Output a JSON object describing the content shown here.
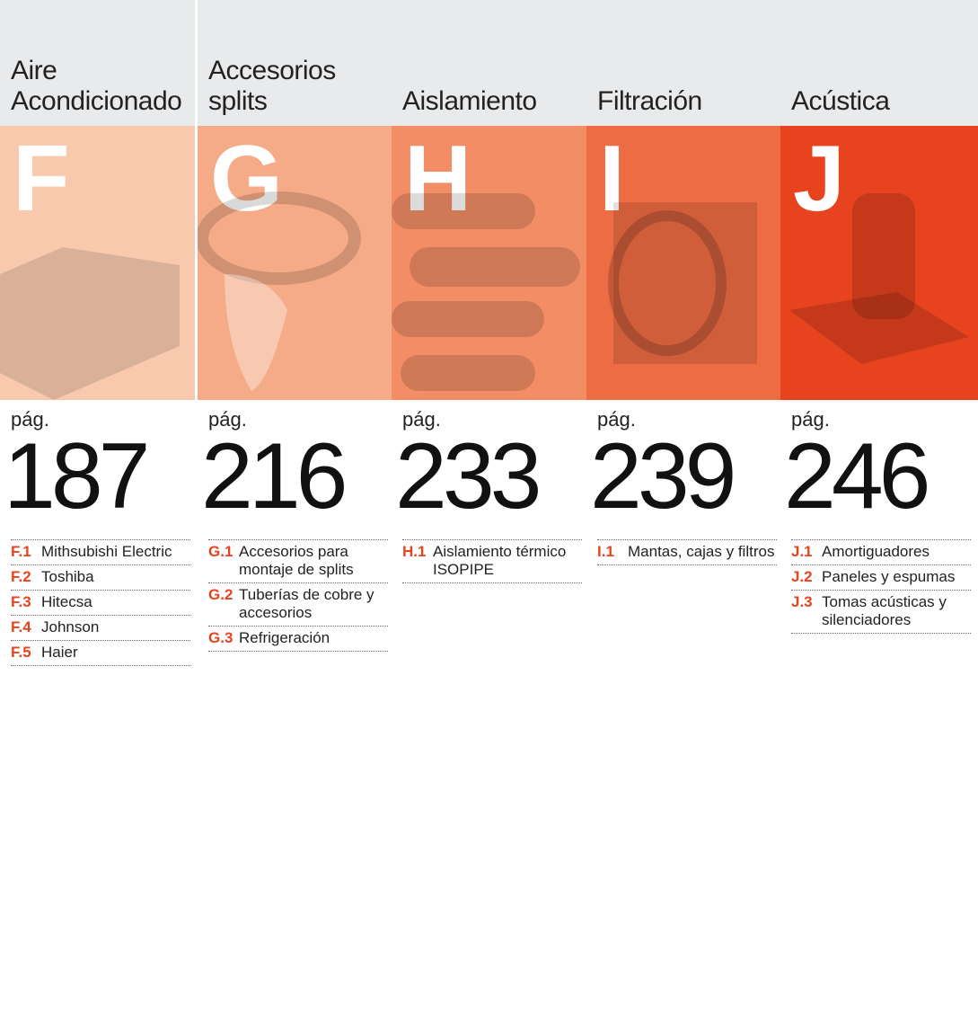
{
  "columns": [
    {
      "title": "Aire\nAcondicionado",
      "letter": "F",
      "page_label": "pág.",
      "page": 187,
      "color": "#f8c9ad",
      "items": [
        {
          "code": "F.1",
          "text": "Mithsubishi Electric"
        },
        {
          "code": "F.2",
          "text": "Toshiba"
        },
        {
          "code": "F.3",
          "text": "Hitecsa"
        },
        {
          "code": "F.4",
          "text": "Johnson"
        },
        {
          "code": "F.5",
          "text": "Haier"
        }
      ]
    },
    {
      "title": "Accesorios\nsplits",
      "letter": "G",
      "page_label": "pág.",
      "page": 216,
      "color": "#f5ab88",
      "items": [
        {
          "code": "G.1",
          "text": "Accesorios para montaje de splits"
        },
        {
          "code": "G.2",
          "text": "Tuberías de cobre y accesorios"
        },
        {
          "code": "G.3",
          "text": "Refrigeración"
        }
      ]
    },
    {
      "title": "Aislamiento",
      "letter": "H",
      "page_label": "pág.",
      "page": 233,
      "color": "#f28d66",
      "items": [
        {
          "code": "H.1",
          "text": "Aislamiento térmico ISOPIPE"
        }
      ]
    },
    {
      "title": "Filtración",
      "letter": "I",
      "page_label": "pág.",
      "page": 239,
      "color": "#ee6c44",
      "items": [
        {
          "code": "I.1",
          "text": "Mantas, cajas y filtros"
        }
      ]
    },
    {
      "title": "Acústica",
      "letter": "J",
      "page_label": "pág.",
      "page": 246,
      "color": "#e8431f",
      "items": [
        {
          "code": "J.1",
          "text": "Amortiguadores"
        },
        {
          "code": "J.2",
          "text": "Paneles y espumas"
        },
        {
          "code": "J.3",
          "text": "Tomas acústicas y silenciadores"
        }
      ]
    }
  ]
}
